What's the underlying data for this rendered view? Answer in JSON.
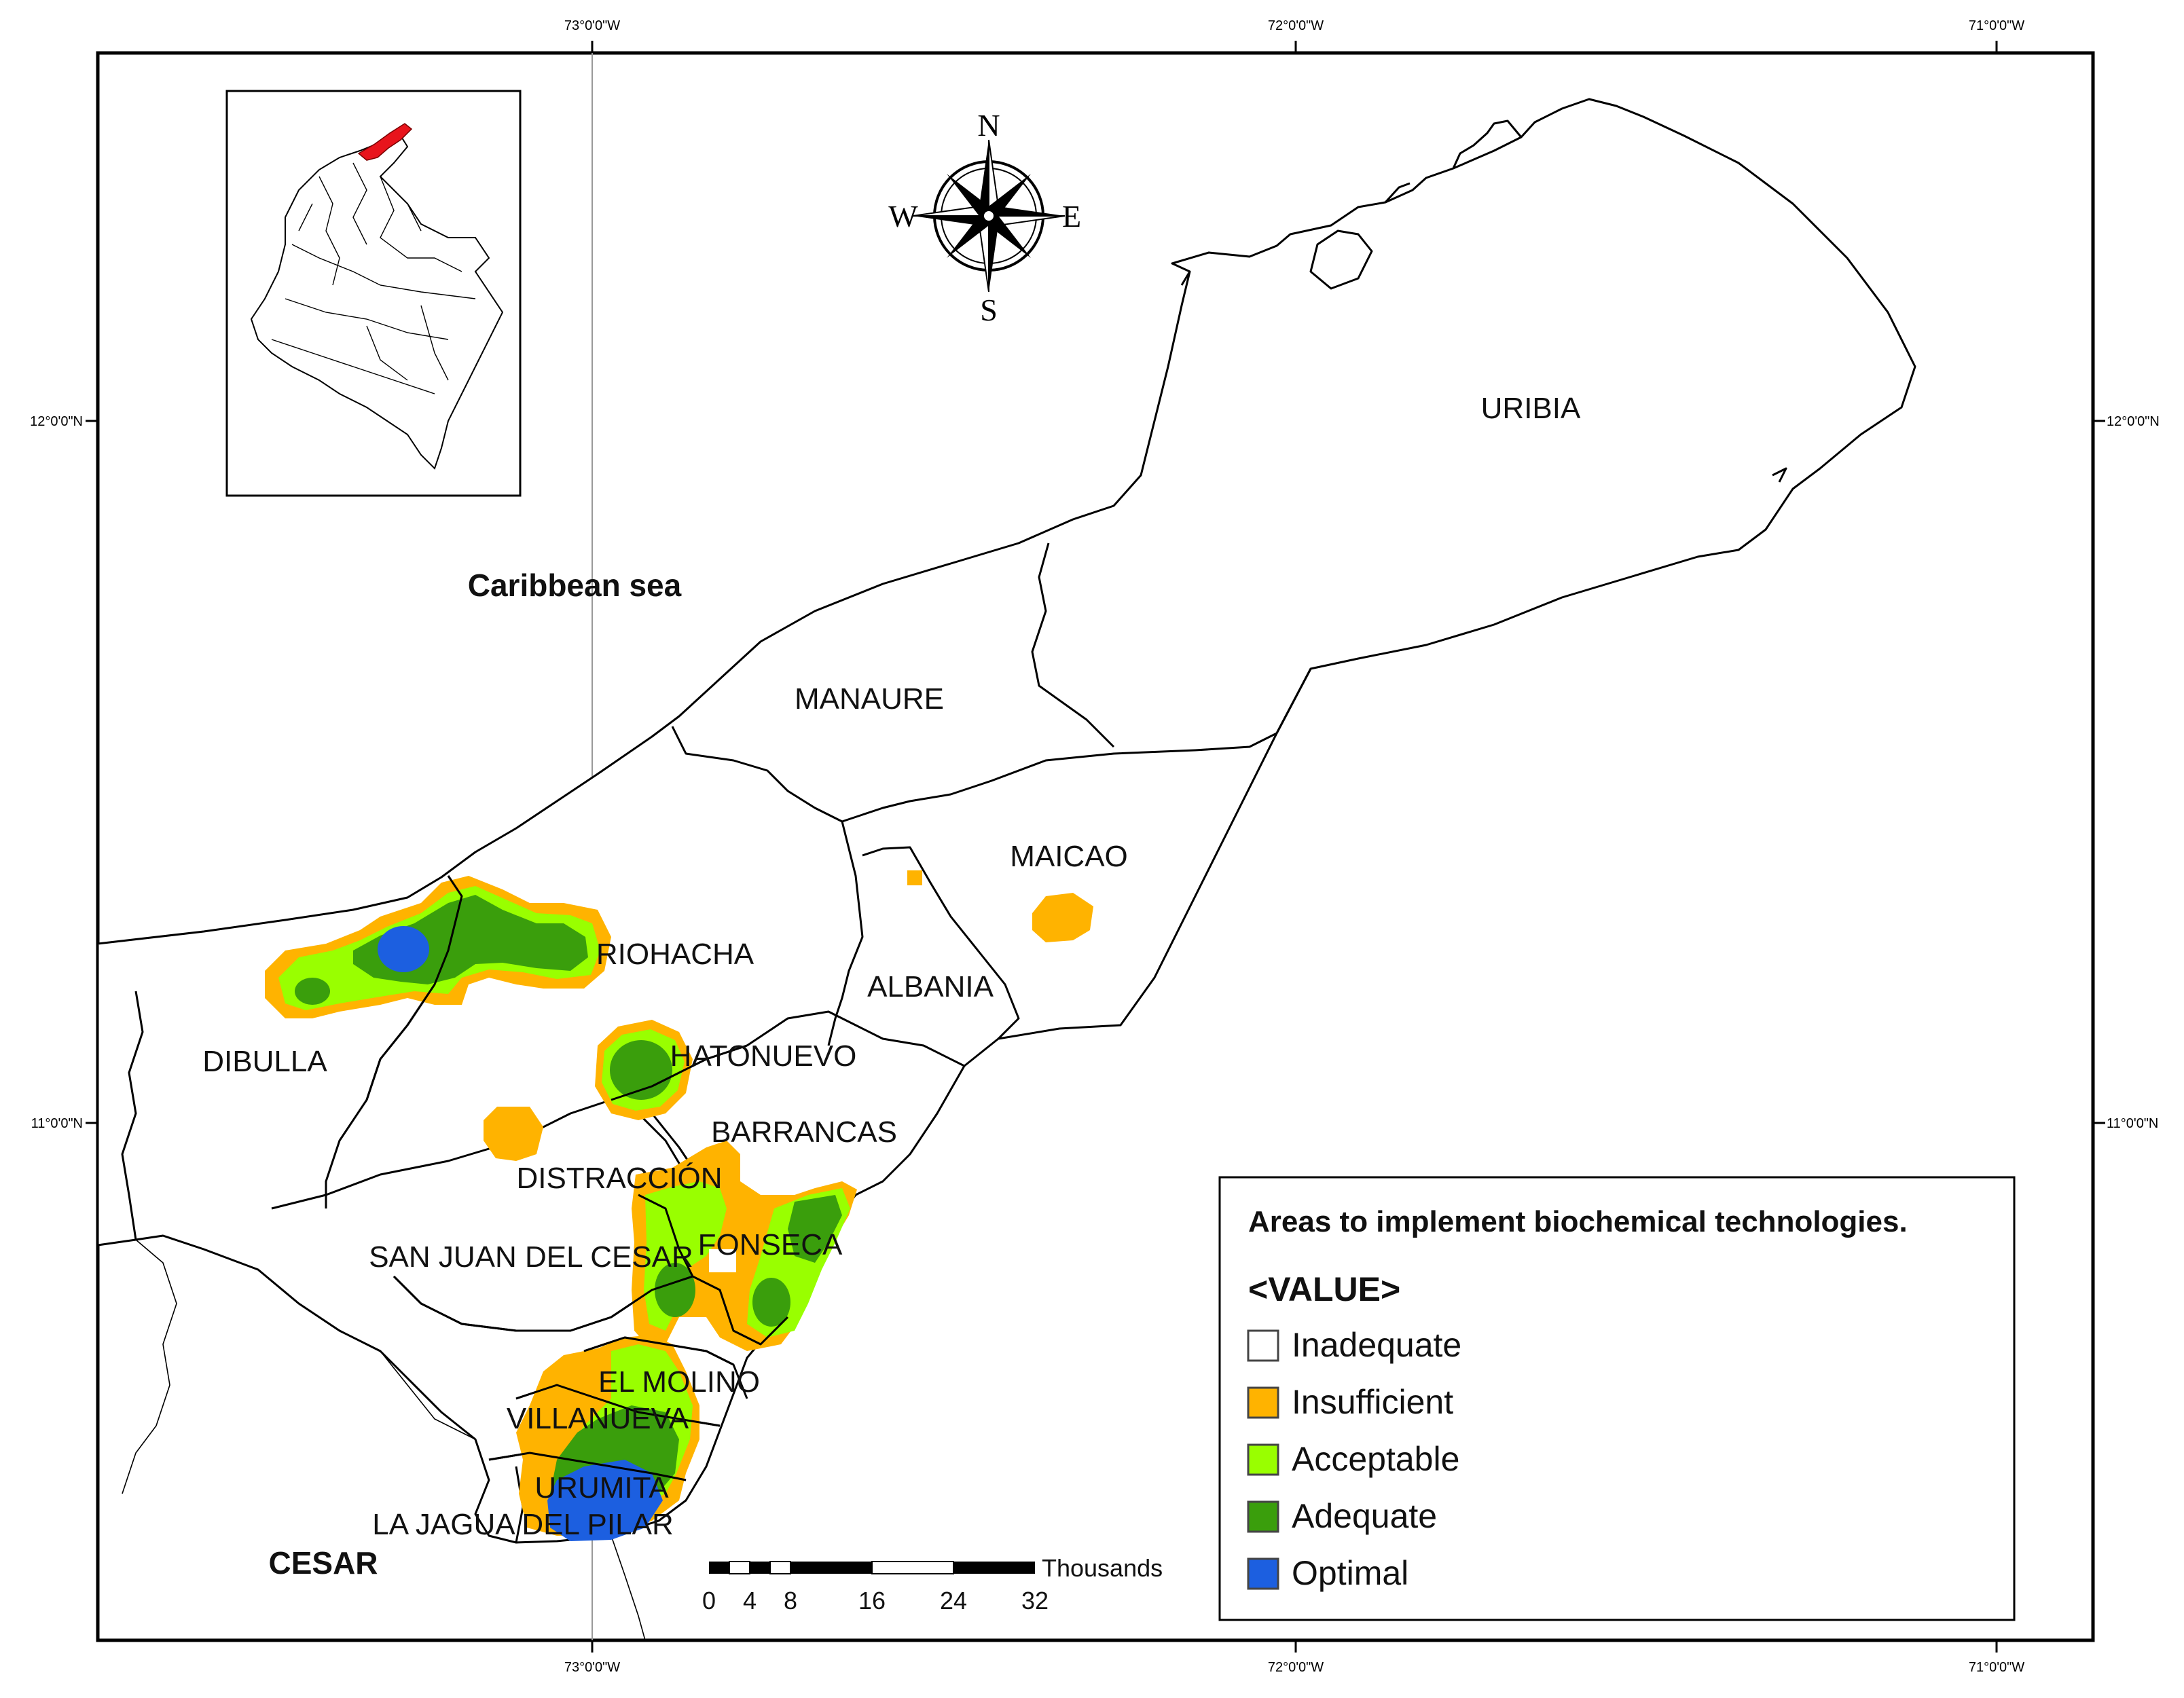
{
  "coordinates": {
    "top": [
      "73°0'0\"W",
      "72°0'0\"W",
      "71°0'0\"W"
    ],
    "bottom": [
      "73°0'0\"W",
      "72°0'0\"W",
      "71°0'0\"W"
    ],
    "left": [
      "12°0'0\"N",
      "11°0'0\"N"
    ],
    "right": [
      "12°0'0\"N",
      "11°0'0\"N"
    ]
  },
  "compass": {
    "n": "N",
    "s": "S",
    "e": "E",
    "w": "W"
  },
  "labels": {
    "sea": "Caribbean sea",
    "cesar": "CESAR",
    "uribia": "URIBIA",
    "manaure": "MANAURE",
    "maicao": "MAICAO",
    "riohacha": "RIOHACHA",
    "albania": "ALBANIA",
    "dibulla": "DIBULLA",
    "hatonuevo": "HATONUEVO",
    "barrancas": "BARRANCAS",
    "distraccion": "DISTRACCIÓN",
    "fonseca": "FONSECA",
    "san_juan": "SAN JUAN DEL CESAR",
    "el_molino": "EL MOLINO",
    "villanueva": "VILLANUEVA",
    "urumita": "URUMITA",
    "la_jagua": "LA JAGUA DEL PILAR"
  },
  "legend": {
    "title": "Areas to implement biochemical technologies.",
    "field": "<VALUE>",
    "items": [
      {
        "label": "Inadequate",
        "color": "#ffffff"
      },
      {
        "label": "Insufficient",
        "color": "#ffb300"
      },
      {
        "label": "Acceptable",
        "color": "#99ff00"
      },
      {
        "label": "Adequate",
        "color": "#3a9e0c"
      },
      {
        "label": "Optimal",
        "color": "#1c5fe0"
      }
    ]
  },
  "scalebar": {
    "unit": "Thousands",
    "ticks": [
      "0",
      "4",
      "8",
      "16",
      "24",
      "32"
    ]
  },
  "inset": {
    "highlight_color": "#e8141c"
  }
}
